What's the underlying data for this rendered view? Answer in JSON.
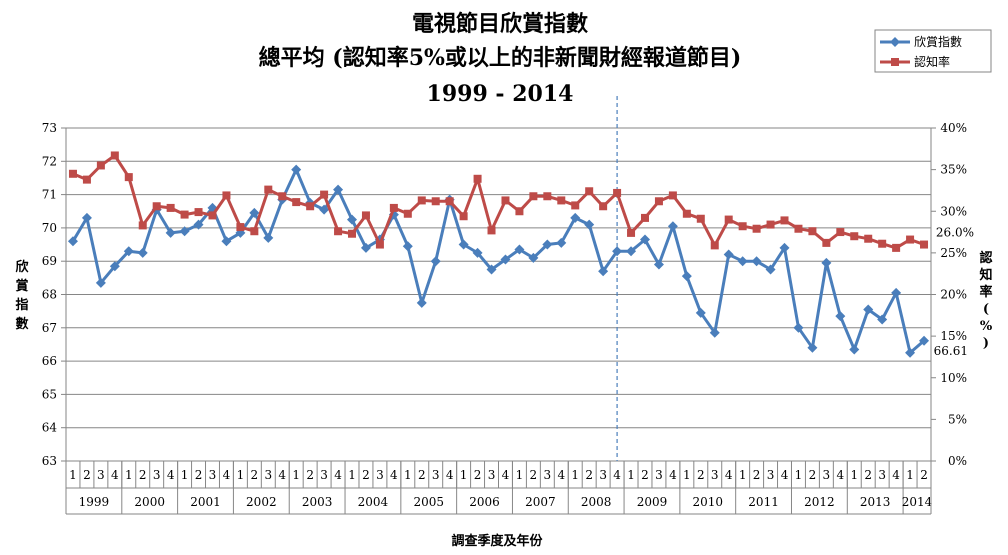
{
  "chart_data": {
    "type": "line",
    "title_lines": [
      "電視節目欣賞指數",
      "總平均 (認知率5%或以上的非新聞財經報道節目)",
      "1999 - 2014"
    ],
    "ylabel_left": "欣賞指數",
    "ylabel_right": "認知率(%)",
    "xlabel": "調查季度及年份",
    "ylim_left": [
      63,
      73
    ],
    "ylim_right": [
      0,
      40
    ],
    "left_ticks": [
      "63",
      "64",
      "65",
      "66",
      "67",
      "68",
      "69",
      "70",
      "71",
      "72",
      "73"
    ],
    "right_ticks": [
      "0%",
      "5%",
      "10%",
      "15%",
      "20%",
      "25%",
      "30%",
      "35%",
      "40%"
    ],
    "years": [
      "1999",
      "2000",
      "2001",
      "2002",
      "2003",
      "2004",
      "2005",
      "2006",
      "2007",
      "2008",
      "2009",
      "2010",
      "2011",
      "2012",
      "2013",
      "2014"
    ],
    "quarters_per_year": [
      4,
      4,
      4,
      4,
      4,
      4,
      4,
      4,
      4,
      4,
      4,
      4,
      4,
      4,
      4,
      2
    ],
    "quarter_labels": [
      "1",
      "2",
      "3",
      "4"
    ],
    "divider_after_index": 39,
    "series": [
      {
        "name": "欣賞指數",
        "color": "#4a7ebb",
        "marker": "diamond",
        "axis": "left",
        "values": [
          69.6,
          70.3,
          68.35,
          68.85,
          69.3,
          69.25,
          70.55,
          69.85,
          69.9,
          70.1,
          70.6,
          69.6,
          69.85,
          70.45,
          69.7,
          70.85,
          71.75,
          70.75,
          70.55,
          71.15,
          70.25,
          69.4,
          69.65,
          70.4,
          69.45,
          67.75,
          69.0,
          70.85,
          69.5,
          69.25,
          68.75,
          69.05,
          69.35,
          69.1,
          69.5,
          69.55,
          70.3,
          70.1,
          68.7,
          69.3,
          69.3,
          69.65,
          68.9,
          70.05,
          68.55,
          67.45,
          66.85,
          69.2,
          69.0,
          69.0,
          68.75,
          69.4,
          67.0,
          66.4,
          68.95,
          67.35,
          66.35,
          67.55,
          67.25,
          68.05,
          66.25,
          66.61
        ]
      },
      {
        "name": "認知率",
        "color": "#be4b48",
        "marker": "square",
        "axis": "right",
        "values": [
          34.5,
          33.8,
          35.5,
          36.7,
          34.1,
          28.3,
          30.6,
          30.4,
          29.6,
          29.9,
          29.5,
          31.9,
          28.1,
          27.6,
          32.6,
          31.8,
          31.1,
          30.6,
          32.0,
          27.6,
          27.3,
          29.5,
          26.0,
          30.4,
          29.7,
          31.3,
          31.2,
          31.2,
          29.4,
          33.9,
          27.7,
          31.3,
          30.0,
          31.8,
          31.8,
          31.3,
          30.7,
          32.4,
          30.6,
          32.2,
          27.4,
          29.2,
          31.2,
          31.9,
          29.7,
          29.1,
          25.9,
          29.0,
          28.2,
          27.9,
          28.4,
          28.9,
          27.9,
          27.6,
          26.2,
          27.5,
          27.0,
          26.7,
          26.1,
          25.6,
          26.6,
          26.0
        ]
      }
    ],
    "annotations": {
      "last_index_value": "66.61",
      "last_rate_value": "26.0%"
    },
    "legend_position": "top-right"
  }
}
